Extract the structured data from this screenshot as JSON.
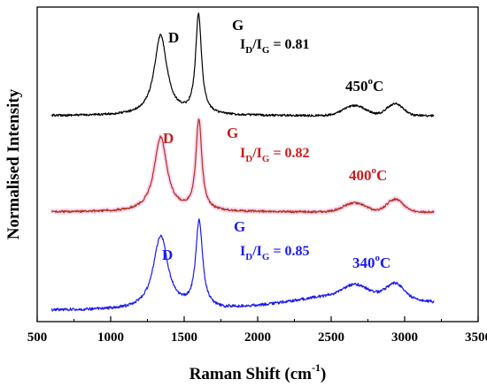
{
  "chart_data": {
    "type": "line",
    "xlabel": "Raman Shift (cm-1)",
    "ylabel": "Normalised Intensity",
    "xlabel_parts": {
      "base": "Raman Shift (cm",
      "sup": "-1",
      "close": ")"
    },
    "xlim": [
      500,
      3500
    ],
    "xticks": [
      500,
      1000,
      1500,
      2000,
      2500,
      3000,
      3500
    ],
    "xtick_labels": [
      "500",
      "1000",
      "1500",
      "2000",
      "2500",
      "3000",
      "3500"
    ],
    "y_ticks_shown": false,
    "x_range_measured": [
      600,
      3200
    ],
    "series": [
      {
        "name": "450°C",
        "temp_base": "450",
        "temp_sup": "o",
        "temp_unit": "C",
        "color": "#000000",
        "d_label": "D",
        "g_label": "G",
        "ratio_text": "ID/IG = 0.81",
        "ratio_value": 0.81,
        "d_peak_x": 1340,
        "g_peak_x": 1598
      },
      {
        "name": "400°C",
        "temp_base": "400",
        "temp_sup": "o",
        "temp_unit": "C",
        "color": "#cc1a1a",
        "line_color": "#b03018",
        "d_label": "D",
        "g_label": "G",
        "ratio_text": "ID/IG = 0.82",
        "ratio_value": 0.82,
        "d_peak_x": 1340,
        "g_peak_x": 1600
      },
      {
        "name": "340°C",
        "temp_base": "340",
        "temp_sup": "o",
        "temp_unit": "C",
        "color": "#1a1aee",
        "d_label": "D",
        "g_label": "G",
        "ratio_text": "ID/IG = 0.85",
        "ratio_value": 0.85,
        "d_peak_x": 1340,
        "g_peak_x": 1602
      }
    ],
    "ratio_parts": {
      "i": "I",
      "sub_d": "D",
      "slash": "/",
      "sub_g": "G",
      "eq": "= "
    },
    "ratio_values_text": [
      "0.81",
      "0.82",
      "0.85"
    ]
  }
}
